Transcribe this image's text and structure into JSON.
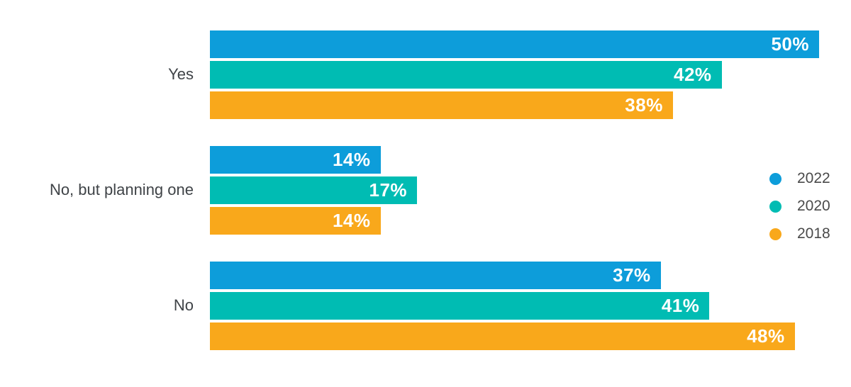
{
  "chart_data": {
    "type": "bar",
    "orientation": "horizontal",
    "title": "",
    "xlabel": "",
    "ylabel": "",
    "grid": false,
    "xlim": [
      0,
      52.6
    ],
    "value_suffix": "%",
    "value_labels_position": "inside-end",
    "legend_position": "right",
    "categories": [
      "Yes",
      "No, but planning one",
      "No"
    ],
    "series": [
      {
        "name": "2022",
        "color": "#0d9dda",
        "values": [
          50,
          14,
          37
        ],
        "labels": [
          "50%",
          "14%",
          "37%"
        ]
      },
      {
        "name": "2020",
        "color": "#00bcb3",
        "values": [
          42,
          17,
          41
        ],
        "labels": [
          "42%",
          "17%",
          "41%"
        ]
      },
      {
        "name": "2018",
        "color": "#f9a81b",
        "values": [
          38,
          14,
          48
        ],
        "labels": [
          "38%",
          "14%",
          "48%"
        ]
      }
    ]
  },
  "colors": {
    "background": "#ffffff",
    "category_label_text": "#3f4347",
    "legend_text": "#4a4a4a",
    "bar_value_text": "#ffffff"
  }
}
